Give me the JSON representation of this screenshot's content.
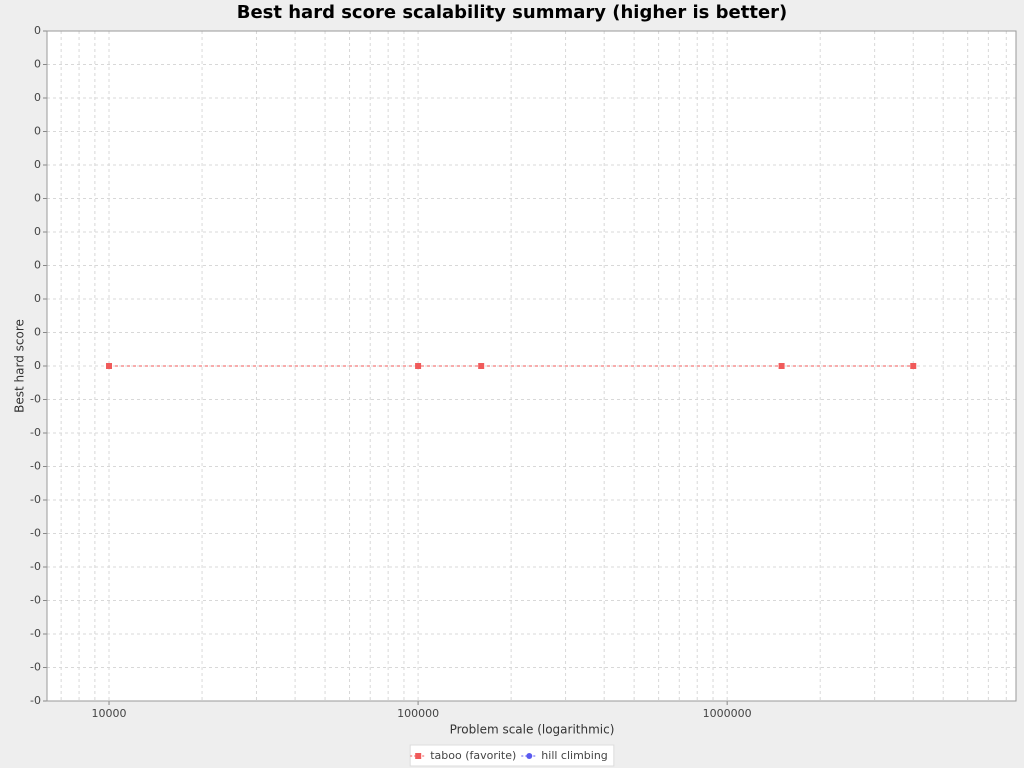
{
  "chart_data": {
    "type": "line",
    "title": "Best hard score scalability summary (higher is better)",
    "x_label": "Problem scale (logarithmic)",
    "y_label": "Best hard score",
    "x": [
      10000,
      100000,
      160000,
      1500000,
      4000000
    ],
    "series": [
      {
        "name": "taboo (favorite)",
        "color": "#f05a5a",
        "marker": "square",
        "values": [
          0,
          0,
          0,
          0,
          0
        ]
      },
      {
        "name": "hill climbing",
        "color": "#5a5af0",
        "marker": "circle",
        "values": [
          null,
          null,
          null,
          null,
          null
        ]
      }
    ],
    "xscale": "log",
    "xlim": [
      6300,
      8600000
    ],
    "xticks": [
      10000,
      100000,
      1000000
    ],
    "ylim": [
      -0.001,
      0.001
    ],
    "yticks": [
      {
        "value": 0.001,
        "label": "0"
      },
      {
        "value": 0.0009,
        "label": "0"
      },
      {
        "value": 0.0008,
        "label": "0"
      },
      {
        "value": 0.0007,
        "label": "0"
      },
      {
        "value": 0.0006,
        "label": "0"
      },
      {
        "value": 0.0005,
        "label": "0"
      },
      {
        "value": 0.0004,
        "label": "0"
      },
      {
        "value": 0.0003,
        "label": "0"
      },
      {
        "value": 0.0002,
        "label": "0"
      },
      {
        "value": 0.0001,
        "label": "0"
      },
      0,
      {
        "value": -0.0001,
        "label": "-0"
      },
      {
        "value": -0.0002,
        "label": "-0"
      },
      {
        "value": -0.0003,
        "label": "-0"
      },
      {
        "value": -0.0004,
        "label": "-0"
      },
      {
        "value": -0.0005,
        "label": "-0"
      },
      {
        "value": -0.0006,
        "label": "-0"
      },
      {
        "value": -0.0007,
        "label": "-0"
      },
      {
        "value": -0.0008,
        "label": "-0"
      },
      {
        "value": -0.0009,
        "label": "-0"
      },
      {
        "value": -0.001,
        "label": "-0"
      }
    ],
    "grid": true,
    "legend": "bottom"
  }
}
